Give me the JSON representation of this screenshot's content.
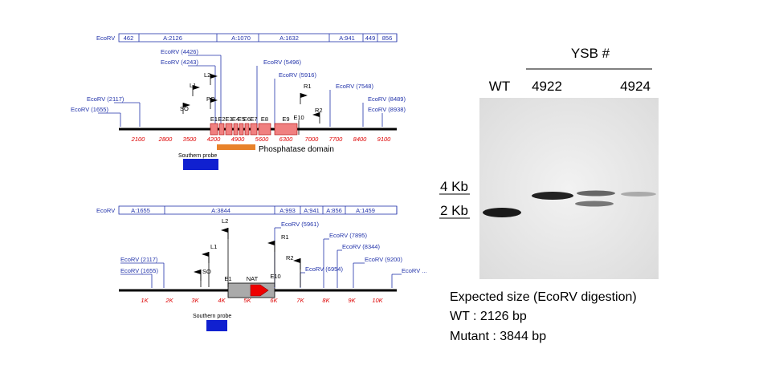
{
  "top_map": {
    "enzyme": "EcoRV",
    "fragments": [
      "462",
      "A:2126",
      "A:1070",
      "A:1632",
      "A:941",
      "449",
      "856"
    ],
    "sites": [
      "EcoRV (4426)",
      "EcoRV (4243)",
      "EcoRV (5496)",
      "EcoRV (5916)",
      "EcoRV (7548)",
      "EcoRV (8489)",
      "EcoRV (8938)",
      "EcoRV (2117)",
      "EcoRV (1655)"
    ],
    "primers": [
      "L2",
      "L1",
      "SO",
      "PO",
      "R1",
      "R2"
    ],
    "exons": [
      "E1",
      "E2",
      "E3",
      "E4",
      "E5",
      "E6",
      "E7",
      "E8",
      "E9",
      "E10"
    ],
    "scale": [
      "2100",
      "2800",
      "3500",
      "4200",
      "4900",
      "5600",
      "6300",
      "7000",
      "7700",
      "8400",
      "9100"
    ],
    "domain": "Phosphatase domain",
    "probe": "Southern probe"
  },
  "bottom_map": {
    "enzyme": "EcoRV",
    "fragments": [
      "A:1655",
      "A:3844",
      "A:993",
      "A:941",
      "A:856",
      "A:1459"
    ],
    "sites": [
      "EcoRV (5961)",
      "EcoRV (7895)",
      "EcoRV (8344)",
      "EcoRV (6954)",
      "EcoRV (9200)",
      "EcoRV ...",
      "EcoRV (2117)",
      "EcoRV (1655)"
    ],
    "primers": [
      "L2",
      "L1",
      "SO",
      "R1",
      "R2"
    ],
    "features": [
      "E1",
      "NAT",
      "E10"
    ],
    "scale": [
      "1K",
      "2K",
      "3K",
      "4K",
      "5K",
      "6K",
      "7K",
      "8K",
      "9K",
      "10K"
    ],
    "probe": "Southern probe"
  },
  "gel": {
    "group": "YSB #",
    "lanes": [
      "WT",
      "4922",
      "4924"
    ],
    "markers": [
      "4 Kb",
      "2 Kb"
    ],
    "caption": [
      "Expected size (EcoRV digestion)",
      "WT : 2126 bp",
      "Mutant : 3844 bp"
    ]
  }
}
